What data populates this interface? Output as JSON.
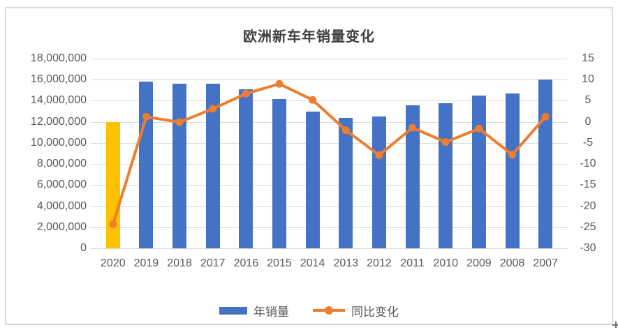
{
  "chart_data": {
    "type": "combo-bar-line",
    "title": "欧洲新车年销量变化",
    "categories": [
      "2020",
      "2019",
      "2018",
      "2017",
      "2016",
      "2015",
      "2014",
      "2013",
      "2012",
      "2011",
      "2010",
      "2009",
      "2008",
      "2007"
    ],
    "series": [
      {
        "name": "年销量",
        "type": "bar",
        "axis": "left",
        "color": "#4472C4",
        "highlight": {
          "category": "2020",
          "color": "#FFC000"
        },
        "values": [
          11960000,
          15800000,
          15620000,
          15600000,
          15070000,
          14160000,
          12970000,
          12350000,
          12520000,
          13600000,
          13750000,
          14480000,
          14700000,
          16000000
        ]
      },
      {
        "name": "同比变化",
        "type": "line",
        "axis": "right",
        "color": "#ED7D31",
        "marker": "circle",
        "values": [
          -24.3,
          1.2,
          -0.1,
          3.1,
          6.7,
          9.0,
          5.2,
          -2.0,
          -7.9,
          -1.4,
          -4.8,
          -1.6,
          -7.8,
          1.2
        ]
      }
    ],
    "left_axis": {
      "min": 0,
      "max": 18000000,
      "step": 2000000,
      "ticks": [
        "18,000,000",
        "16,000,000",
        "14,000,000",
        "12,000,000",
        "10,000,000",
        "8,000,000",
        "6,000,000",
        "4,000,000",
        "2,000,000",
        "0"
      ]
    },
    "right_axis": {
      "min": -30,
      "max": 15,
      "step": 5,
      "ticks": [
        "15",
        "10",
        "5",
        "0",
        "-5",
        "-10",
        "-15",
        "-20",
        "-25",
        "-30"
      ]
    },
    "grid": true,
    "legend_position": "bottom",
    "colors": {
      "grid": "#D9D9D9",
      "axis_text": "#595959",
      "title_text": "#404040",
      "frame_border": "#D9D9D9"
    }
  }
}
